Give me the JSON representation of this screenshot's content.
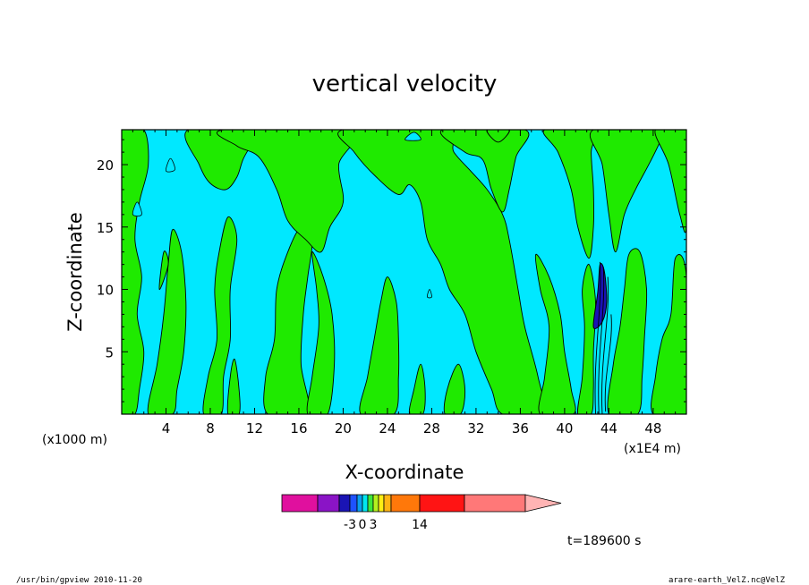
{
  "chart_data": {
    "type": "heatmap",
    "title": "vertical velocity",
    "xlabel": "X-coordinate",
    "ylabel": "Z-coordinate",
    "x_unit_left": "(x1000 m)",
    "x_unit_right": "(x1E4 m)",
    "xlim": [
      0,
      51
    ],
    "ylim": [
      0,
      22.8
    ],
    "x_ticks": [
      "4",
      "8",
      "12",
      "16",
      "20",
      "24",
      "28",
      "32",
      "36",
      "40",
      "44",
      "48"
    ],
    "y_ticks": [
      "5",
      "10",
      "15",
      "20"
    ],
    "colorbar": {
      "tick_labels": [
        "-3",
        "0",
        "3",
        "14"
      ],
      "colors": [
        "#e0109e",
        "#8a14c6",
        "#1a14b4",
        "#1e52ff",
        "#0a9ef0",
        "#00e6f0",
        "#3de63c",
        "#b4f01e",
        "#ffee14",
        "#ffb414",
        "#ff780a",
        "#ff1414",
        "#ff7878",
        "#ffb4b4"
      ]
    },
    "field_colors": {
      "positive": "#00e8ff",
      "negative": "#1fea00",
      "strong_updraft": "#1a14b4"
    },
    "time_label": "t=189600 s"
  },
  "footer": {
    "program": "/usr/bin/gpview   2010-11-20",
    "source": "arare-earth_VelZ.nc@VelZ"
  }
}
